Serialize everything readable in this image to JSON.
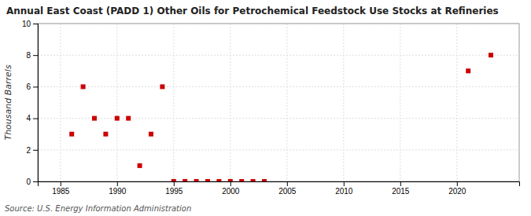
{
  "chart_data": {
    "type": "scatter",
    "title": "Annual East Coast (PADD 1) Other Oils for Petrochemical Feedstock Use Stocks at Refineries",
    "ylabel": "Thousand Barrels",
    "source": "Source: U.S. Energy Information Administration",
    "x": [
      1986,
      1987,
      1988,
      1989,
      1990,
      1991,
      1992,
      1993,
      1994,
      1995,
      1996,
      1997,
      1998,
      1999,
      2000,
      2001,
      2002,
      2003,
      2021,
      2023
    ],
    "values": [
      3,
      6,
      4,
      3,
      4,
      4,
      1,
      3,
      6,
      0,
      0,
      0,
      0,
      0,
      0,
      0,
      0,
      0,
      7,
      8
    ],
    "color": "#cc0000",
    "marker": "square",
    "xlim": [
      1983,
      2025.5
    ],
    "ylim": [
      0,
      10
    ],
    "xticks": [
      1985,
      1990,
      1995,
      2000,
      2005,
      2010,
      2015,
      2020
    ],
    "yticks": [
      0,
      2,
      4,
      6,
      8,
      10
    ],
    "grid": true
  }
}
